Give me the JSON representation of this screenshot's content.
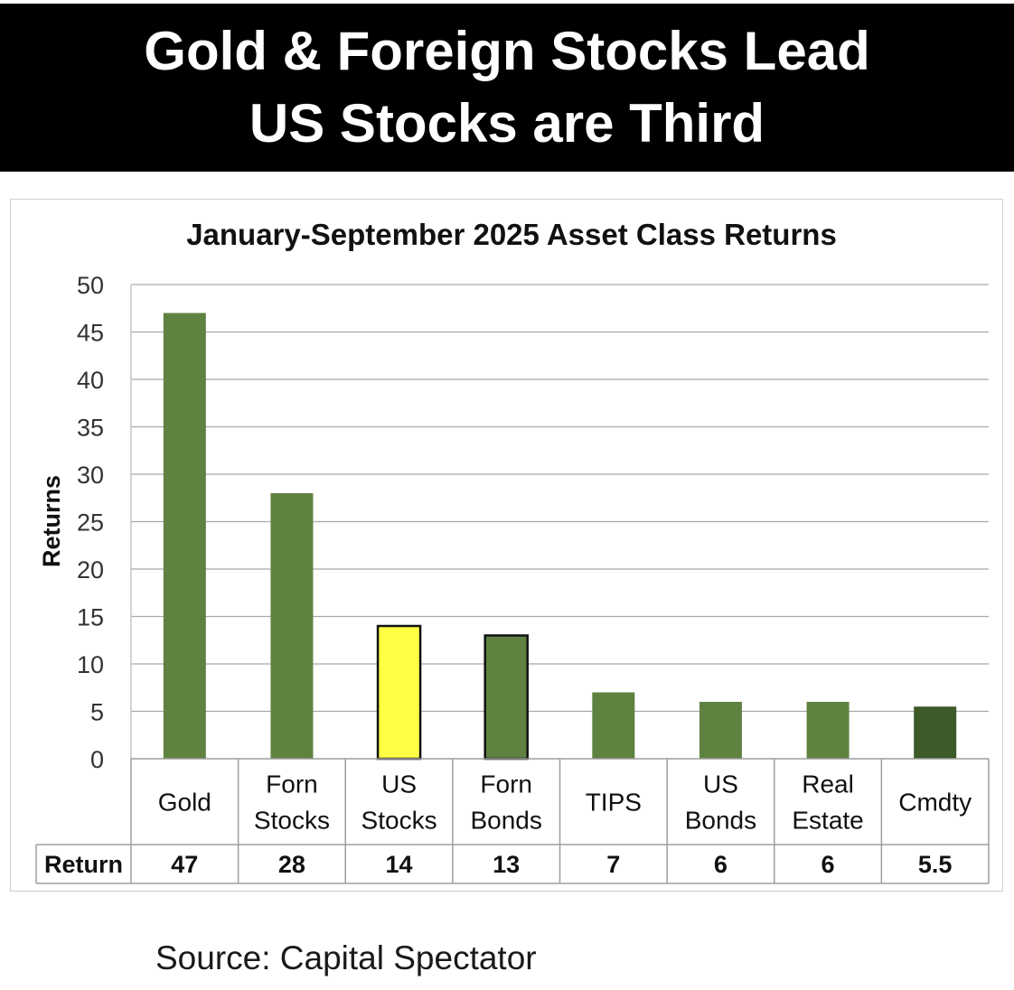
{
  "banner": {
    "line1": "Gold & Foreign Stocks Lead",
    "line2": "US Stocks are Third"
  },
  "source": "Source: Capital Spectator",
  "colors": {
    "bar": "#5f8241",
    "highlight": "#ffff44",
    "dark": "#3e5a29",
    "banner": "#000000"
  },
  "chart_data": {
    "type": "bar",
    "title": "January-September 2025 Asset Class Returns",
    "ylabel": "Returns",
    "xlabel": "",
    "ylim": [
      0,
      50
    ],
    "yticks": [
      0,
      5,
      10,
      15,
      20,
      25,
      30,
      35,
      40,
      45,
      50
    ],
    "grid": true,
    "categories": [
      [
        "Gold"
      ],
      [
        "Forn",
        "Stocks"
      ],
      [
        "US",
        "Stocks"
      ],
      [
        "Forn",
        "Bonds"
      ],
      [
        "TIPS"
      ],
      [
        "US",
        "Bonds"
      ],
      [
        "Real",
        "Estate"
      ],
      [
        "Cmdty"
      ]
    ],
    "values": [
      47,
      28,
      14,
      13,
      7,
      6,
      6,
      5.5
    ],
    "bar_colors": [
      "#5f8241",
      "#5f8241",
      "#ffff44",
      "#5f8241",
      "#5f8241",
      "#5f8241",
      "#5f8241",
      "#3e5a29"
    ],
    "bar_outlined": [
      false,
      false,
      true,
      true,
      false,
      false,
      false,
      false
    ],
    "table": {
      "row_label": "Return",
      "values": [
        "47",
        "28",
        "14",
        "13",
        "7",
        "6",
        "6",
        "5.5"
      ]
    }
  }
}
